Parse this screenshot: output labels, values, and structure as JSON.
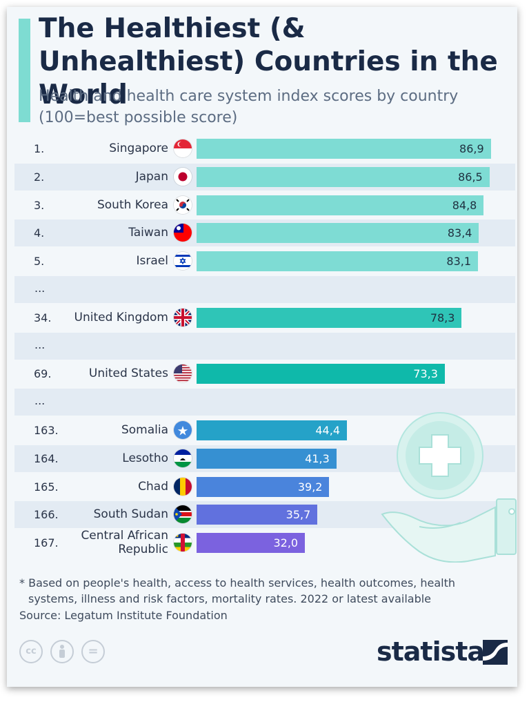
{
  "title": "The Healthiest (& Unhealthiest) Countries in the World",
  "subtitle": "Health and health care system index scores by country (100=best possible score)",
  "chart_data": {
    "type": "bar",
    "orientation": "horizontal",
    "title": "The Healthiest (& Unhealthiest) Countries in the World",
    "subtitle": "Health and health care system index scores by country (100=best possible score)",
    "xlim": [
      0,
      100
    ],
    "rows": [
      {
        "kind": "data",
        "rank": "1.",
        "country": "Singapore",
        "value": 86.9,
        "label": "86,9",
        "color": "#7edcd4",
        "flag": "singapore-flag-icon"
      },
      {
        "kind": "data",
        "rank": "2.",
        "country": "Japan",
        "value": 86.5,
        "label": "86,5",
        "color": "#7edcd4",
        "flag": "japan-flag-icon"
      },
      {
        "kind": "data",
        "rank": "3.",
        "country": "South Korea",
        "value": 84.8,
        "label": "84,8",
        "color": "#7edcd4",
        "flag": "south-korea-flag-icon"
      },
      {
        "kind": "data",
        "rank": "4.",
        "country": "Taiwan",
        "value": 83.4,
        "label": "83,4",
        "color": "#7edcd4",
        "flag": "taiwan-flag-icon"
      },
      {
        "kind": "data",
        "rank": "5.",
        "country": "Israel",
        "value": 83.1,
        "label": "83,1",
        "color": "#7edcd4",
        "flag": "israel-flag-icon"
      },
      {
        "kind": "gap",
        "rank": "..."
      },
      {
        "kind": "data",
        "rank": "34.",
        "country": "United Kingdom",
        "value": 78.3,
        "label": "78,3",
        "color": "#2fc5b7",
        "flag": "uk-flag-icon"
      },
      {
        "kind": "gap",
        "rank": "..."
      },
      {
        "kind": "data",
        "rank": "69.",
        "country": "United States",
        "value": 73.3,
        "label": "73,3",
        "color": "#0fb9aa",
        "flag": "us-flag-icon"
      },
      {
        "kind": "gap",
        "rank": "..."
      },
      {
        "kind": "data",
        "rank": "163.",
        "country": "Somalia",
        "value": 44.4,
        "label": "44,4",
        "color": "#25a2c8",
        "flag": "somalia-flag-icon"
      },
      {
        "kind": "data",
        "rank": "164.",
        "country": "Lesotho",
        "value": 41.3,
        "label": "41,3",
        "color": "#3690d2",
        "flag": "lesotho-flag-icon"
      },
      {
        "kind": "data",
        "rank": "165.",
        "country": "Chad",
        "value": 39.2,
        "label": "39,2",
        "color": "#4a84dc",
        "flag": "chad-flag-icon"
      },
      {
        "kind": "data",
        "rank": "166.",
        "country": "South Sudan",
        "value": 35.7,
        "label": "35,7",
        "color": "#6171de",
        "flag": "south-sudan-flag-icon"
      },
      {
        "kind": "data",
        "rank": "167.",
        "country": "Central African Republic",
        "country_lines": [
          "Central African",
          "Republic"
        ],
        "value": 32.0,
        "label": "32,0",
        "color": "#7b62df",
        "flag": "car-flag-icon"
      }
    ]
  },
  "footnote": {
    "line1": "* Based on people's health, access to health services, health outcomes, health",
    "line2": "systems, illness and risk factors, mortality rates. 2022 or latest available"
  },
  "source": "Source: Legatum Institute Foundation",
  "license_icons": [
    {
      "name": "cc-icon",
      "text": "cc"
    },
    {
      "name": "attribution-icon",
      "text": ""
    },
    {
      "name": "no-derivatives-icon",
      "text": "="
    }
  ],
  "brand": "statista"
}
